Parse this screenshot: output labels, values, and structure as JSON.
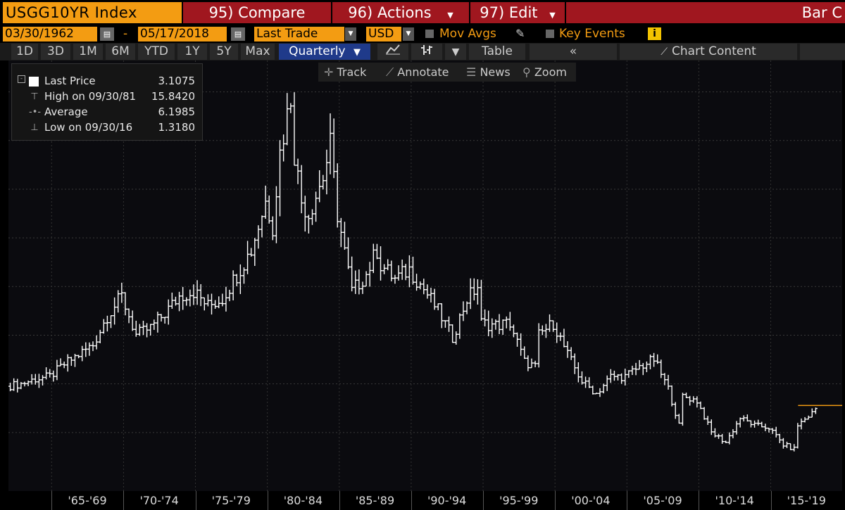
{
  "header": {
    "ticker": "USGG10YR Index",
    "compare": "95) Compare",
    "actions": "96) Actions",
    "edit": "97) Edit",
    "chart_style": "Bar C"
  },
  "controls": {
    "start_date": "03/30/1962",
    "date_sep": "-",
    "end_date": "05/17/2018",
    "field": "Last Trade",
    "currency": "USD",
    "mov_avgs": "Mov Avgs",
    "key_events": "Key Events",
    "key_events_info": "i"
  },
  "periods": [
    "1D",
    "3D",
    "1M",
    "6M",
    "YTD",
    "1Y",
    "5Y",
    "Max"
  ],
  "frequency": "Quarterly",
  "table_label": "Table",
  "collapse_label": "«",
  "chart_content_label": "Chart Content",
  "tools": {
    "track": "Track",
    "annotate": "Annotate",
    "news": "News",
    "zoom": "Zoom"
  },
  "legend": {
    "last_label": "Last Price",
    "last_value": "3.1075",
    "high_label": "High on 09/30/81",
    "high_value": "15.8420",
    "avg_label": "Average",
    "avg_value": "6.1985",
    "low_label": "Low on 09/30/16",
    "low_value": "1.3180"
  },
  "colors": {
    "accent": "#f39c12",
    "red": "#a0171f",
    "selected": "#1f3a8a",
    "line": "#ffffff",
    "last_price": "#f39c12"
  },
  "chart_data": {
    "type": "line",
    "x_tick_labels": [
      "'65-'69",
      "'70-'74",
      "'75-'79",
      "'80-'84",
      "'85-'89",
      "'90-'94",
      "'95-'99",
      "'00-'04",
      "'05-'09",
      "'10-'14",
      "'15-'19"
    ],
    "x": [
      "1962",
      "1963",
      "1964",
      "1965",
      "1966",
      "1967",
      "1968",
      "1969",
      "1970",
      "1971",
      "1972",
      "1973",
      "1974",
      "1975",
      "1976",
      "1977",
      "1978",
      "1979",
      "1980",
      "1980.5",
      "1981",
      "1981.75",
      "1982",
      "1982.5",
      "1983",
      "1984",
      "1984.5",
      "1985",
      "1986",
      "1987",
      "1987.75",
      "1988",
      "1989",
      "1990",
      "1991",
      "1992",
      "1993",
      "1994",
      "1994.75",
      "1995",
      "1996",
      "1997",
      "1998",
      "1998.75",
      "1999",
      "2000",
      "2001",
      "2002",
      "2003",
      "2004",
      "2005",
      "2006",
      "2007",
      "2008",
      "2008.75",
      "2009",
      "2010",
      "2011",
      "2012",
      "2013",
      "2014",
      "2015",
      "2016",
      "2016.75",
      "2017",
      "2018",
      "2018.4"
    ],
    "y": [
      3.9,
      4.0,
      4.2,
      4.3,
      4.8,
      5.2,
      5.6,
      6.8,
      7.6,
      6.0,
      6.3,
      6.9,
      7.6,
      7.8,
      7.2,
      7.5,
      8.5,
      9.5,
      11.5,
      10.5,
      13.5,
      15.84,
      13.5,
      11.5,
      11.0,
      12.5,
      13.8,
      11.0,
      7.8,
      8.5,
      9.5,
      8.9,
      8.3,
      8.7,
      7.9,
      7.0,
      5.9,
      7.5,
      8.0,
      6.5,
      6.4,
      6.5,
      4.9,
      4.7,
      6.0,
      6.5,
      5.2,
      4.1,
      3.6,
      4.3,
      4.3,
      4.7,
      5.0,
      3.8,
      2.3,
      3.5,
      3.3,
      2.0,
      1.6,
      2.6,
      2.3,
      2.2,
      1.5,
      1.32,
      2.3,
      2.8,
      3.11
    ],
    "ylim": [
      0,
      17
    ],
    "grid": true,
    "legend_position": "top-left"
  }
}
